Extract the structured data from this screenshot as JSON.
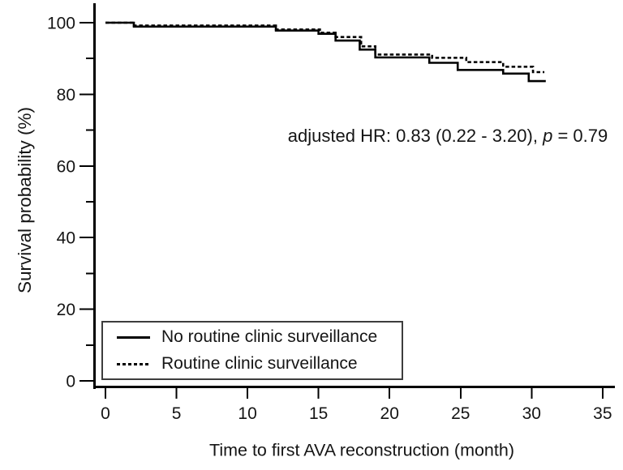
{
  "figure": {
    "background": "#ffffff",
    "axis_color": "#000000",
    "legend_border_color": "#3d3d3d"
  },
  "chart_data": {
    "type": "line",
    "subtype": "kaplan-meier-step",
    "title": "",
    "xlabel": "Time to first AVA reconstruction (month)",
    "ylabel": "Survival probability (%)",
    "xlim": [
      0,
      35
    ],
    "ylim": [
      0,
      100
    ],
    "x_ticks": [
      0,
      5,
      10,
      15,
      20,
      25,
      30,
      35
    ],
    "y_ticks": [
      0,
      20,
      40,
      60,
      80,
      100
    ],
    "y_minor_ticks": [
      10,
      30,
      50,
      70,
      90
    ],
    "grid": false,
    "legend_position": "bottom-left-inside",
    "annotation": {
      "prefix": "adjusted HR: 0.83 (0.22 - 3.20), ",
      "italic": "p",
      "suffix": " = 0.79"
    },
    "series": [
      {
        "name": "No routine clinic surveillance",
        "line_style": "solid",
        "color": "#000000",
        "end_month": 31.0,
        "points": [
          [
            0,
            100
          ],
          [
            2,
            98.9
          ],
          [
            12,
            97.8
          ],
          [
            15,
            96.9
          ],
          [
            16.2,
            95.0
          ],
          [
            17.9,
            92.5
          ],
          [
            19,
            90.3
          ],
          [
            22.8,
            88.8
          ],
          [
            24.8,
            86.8
          ],
          [
            28,
            85.8
          ],
          [
            29.8,
            83.7
          ]
        ]
      },
      {
        "name": "Routine clinic surveillance",
        "line_style": "dashed",
        "color": "#000000",
        "end_month": 30.9,
        "points": [
          [
            0,
            100
          ],
          [
            2,
            99.2
          ],
          [
            12,
            98.1
          ],
          [
            15.1,
            97.2
          ],
          [
            16.2,
            96.0
          ],
          [
            18,
            93.4
          ],
          [
            19,
            91.1
          ],
          [
            23,
            90.2
          ],
          [
            25.4,
            89.0
          ],
          [
            28,
            87.7
          ],
          [
            30.1,
            86.2
          ]
        ]
      }
    ]
  }
}
